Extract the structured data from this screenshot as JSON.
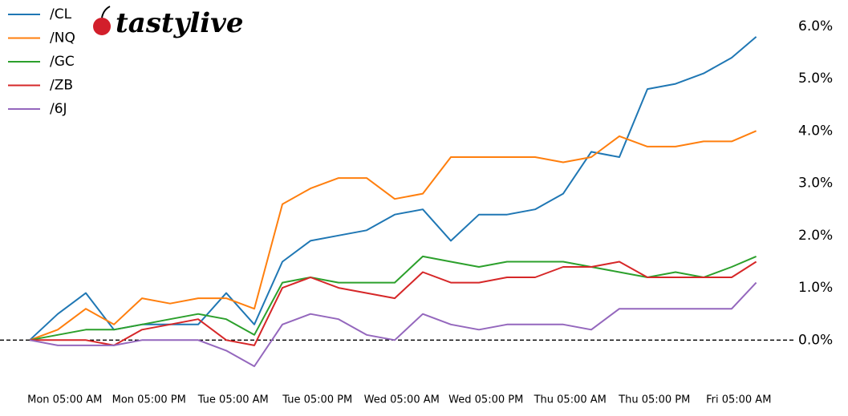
{
  "chart_data": {
    "type": "line",
    "logo": "tastylive",
    "x": [
      0,
      4,
      8,
      12,
      16,
      20,
      24,
      28,
      32,
      36,
      40,
      44,
      48,
      52,
      56,
      60,
      64,
      68,
      72,
      76,
      80,
      84,
      88,
      92,
      96,
      100,
      103.5
    ],
    "xlim": [
      0,
      104
    ],
    "xticks": [
      {
        "value": 5,
        "label": "Mon 05:00 AM"
      },
      {
        "value": 17,
        "label": "Mon 05:00 PM"
      },
      {
        "value": 29,
        "label": "Tue 05:00 AM"
      },
      {
        "value": 41,
        "label": "Tue 05:00 PM"
      },
      {
        "value": 53,
        "label": "Wed 05:00 AM"
      },
      {
        "value": 65,
        "label": "Wed 05:00 PM"
      },
      {
        "value": 77,
        "label": "Thu 05:00 AM"
      },
      {
        "value": 89,
        "label": "Thu 05:00 PM"
      },
      {
        "value": 101,
        "label": "Fri 05:00 AM"
      }
    ],
    "ylim": [
      -0.7,
      6.35
    ],
    "yticks": [
      {
        "value": 0,
        "label": "0.0%"
      },
      {
        "value": 1,
        "label": "1.0%"
      },
      {
        "value": 2,
        "label": "2.0%"
      },
      {
        "value": 3,
        "label": "3.0%"
      },
      {
        "value": 4,
        "label": "4.0%"
      },
      {
        "value": 5,
        "label": "5.0%"
      },
      {
        "value": 6,
        "label": "6.0%"
      }
    ],
    "reference_line": 0,
    "legend": "upper left",
    "grid": false,
    "series": [
      {
        "name": "/CL",
        "color": "#1f77b4",
        "values": [
          0,
          0.5,
          0.9,
          0.2,
          0.3,
          0.3,
          0.3,
          0.9,
          0.3,
          1.5,
          1.9,
          2.0,
          2.1,
          2.4,
          2.5,
          1.9,
          2.4,
          2.4,
          2.5,
          2.8,
          3.6,
          3.5,
          4.8,
          4.9,
          5.1,
          5.4,
          5.8
        ]
      },
      {
        "name": "/NQ",
        "color": "#ff7f0e",
        "values": [
          0,
          0.2,
          0.6,
          0.3,
          0.8,
          0.7,
          0.8,
          0.8,
          0.6,
          2.6,
          2.9,
          3.1,
          3.1,
          2.7,
          2.8,
          3.5,
          3.5,
          3.5,
          3.5,
          3.4,
          3.5,
          3.9,
          3.7,
          3.7,
          3.8,
          3.8,
          4.0
        ]
      },
      {
        "name": "/GC",
        "color": "#2ca02c",
        "values": [
          0,
          0.1,
          0.2,
          0.2,
          0.3,
          0.4,
          0.5,
          0.4,
          0.1,
          1.1,
          1.2,
          1.1,
          1.1,
          1.1,
          1.6,
          1.5,
          1.4,
          1.5,
          1.5,
          1.5,
          1.4,
          1.3,
          1.2,
          1.3,
          1.2,
          1.4,
          1.6
        ]
      },
      {
        "name": "/ZB",
        "color": "#d62728",
        "values": [
          0,
          0.0,
          0.0,
          -0.1,
          0.2,
          0.3,
          0.4,
          0.0,
          -0.1,
          1.0,
          1.2,
          1.0,
          0.9,
          0.8,
          1.3,
          1.1,
          1.1,
          1.2,
          1.2,
          1.4,
          1.4,
          1.5,
          1.2,
          1.2,
          1.2,
          1.2,
          1.5
        ]
      },
      {
        "name": "/6J",
        "color": "#9467bd",
        "values": [
          0,
          -0.1,
          -0.1,
          -0.1,
          0.0,
          0.0,
          0.0,
          -0.2,
          -0.5,
          0.3,
          0.5,
          0.4,
          0.1,
          0.0,
          0.5,
          0.3,
          0.2,
          0.3,
          0.3,
          0.3,
          0.2,
          0.6,
          0.6,
          0.6,
          0.6,
          0.6,
          1.1
        ]
      }
    ]
  }
}
